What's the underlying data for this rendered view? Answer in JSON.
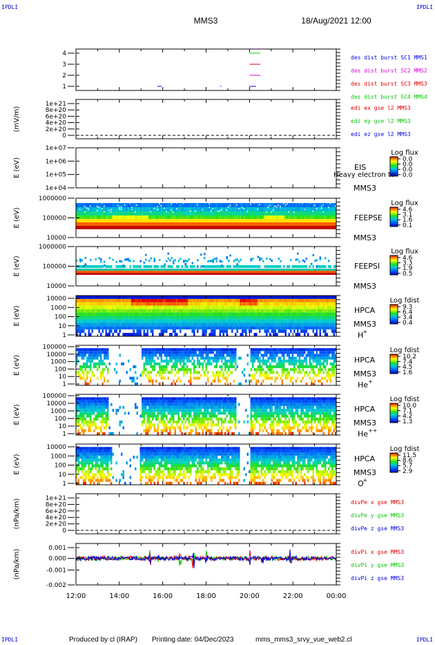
{
  "header": {
    "corner_label": "IPDLI",
    "mission": "MMS3",
    "datetime": "18/Aug/2021 12:00"
  },
  "footer": {
    "producer": "Produced by cl (IRAP)",
    "printing": "Printing date: 04/Dec/2023",
    "file": "mms_mms3_srvy_vue_web2.cl"
  },
  "x_axis": {
    "ticks": [
      "12:00",
      "14:00",
      "16:00",
      "18:00",
      "20:00",
      "22:00",
      "00:00"
    ],
    "range_hours": [
      0,
      12
    ]
  },
  "colors": {
    "frame": "#000000",
    "label_blue": "#0000c8",
    "mms1": "#00c800",
    "mms2": "#e00000",
    "mms3": "#e000e0",
    "mms4": "#0000e0",
    "x_comp": "#e00000",
    "y_comp": "#00c800",
    "z_comp": "#0000e0"
  },
  "panels": [
    {
      "id": "burst",
      "type": "line",
      "ylabel": "",
      "yticks": [
        "1",
        "2",
        "3",
        "4"
      ],
      "legend": [
        {
          "text": "des dist burst SC1 MMS1",
          "color": "#0000e0"
        },
        {
          "text": "des dist burst SC2 MMS2",
          "color": "#e000e0"
        },
        {
          "text": "des dist burst SC3 MMS3",
          "color": "#e00000"
        },
        {
          "text": "des dist burst SC4 MMS4",
          "color": "#00c800"
        }
      ],
      "series": [
        {
          "name": "SC1 MMS1",
          "level": 1,
          "intervals": [
            [
              3.75,
              3.95
            ],
            [
              6.65,
              6.7
            ],
            [
              8.0,
              8.3
            ]
          ]
        },
        {
          "name": "SC2 MMS2",
          "level": 2,
          "intervals": [
            [
              8.0,
              8.5
            ]
          ]
        },
        {
          "name": "SC3 MMS3",
          "level": 3,
          "intervals": [
            [
              8.0,
              8.5
            ]
          ]
        },
        {
          "name": "SC4 MMS4",
          "level": 4,
          "intervals": [
            [
              8.0,
              8.5
            ]
          ]
        }
      ]
    },
    {
      "id": "edi",
      "type": "line",
      "ylabel": "(mV/m)",
      "yticks": [
        "0",
        "2e+20",
        "4e+20",
        "6e+20",
        "8e+20",
        "1e+21"
      ],
      "legend": [
        {
          "text": "edi ex gse l2 MMS3",
          "color": "#e00000"
        },
        {
          "text": "edi ey gse l2 MMS3",
          "color": "#00c800"
        },
        {
          "text": "edi ez gse l2 MMS3",
          "color": "#0000e0"
        }
      ]
    },
    {
      "id": "eis",
      "type": "heatmap",
      "ylabel": "E (eV)",
      "yticks": [
        "1e+04",
        "1e+05",
        "1e+06",
        "1e+07"
      ],
      "label_top": "EIS",
      "label_bottom": "MMS3",
      "overlay": "Heavy electron to",
      "cbar_title": "Log flux",
      "cbar_ticks": [
        "0.0",
        "0.0",
        "0.0",
        "0.0"
      ]
    },
    {
      "id": "feepse",
      "type": "heatmap",
      "ylabel": "E (eV)",
      "yticks": [
        "10000",
        "100000",
        "1000000"
      ],
      "label_top": "FEEPSE",
      "label_bottom": "MMS3",
      "cbar_title": "Log flux",
      "cbar_ticks": [
        "4.6",
        "3.1",
        "1.6",
        "0.1"
      ]
    },
    {
      "id": "feepsi",
      "type": "heatmap",
      "ylabel": "E (eV)",
      "yticks": [
        "10000",
        "100000",
        "1000000"
      ],
      "label_top": "FEEPSI",
      "label_bottom": "MMS3",
      "cbar_title": "Log flux",
      "cbar_ticks": [
        "4.6",
        "3.3",
        "1.9",
        "0.5"
      ]
    },
    {
      "id": "hpca_h",
      "type": "heatmap",
      "ylabel": "E (eV)",
      "yticks": [
        "1",
        "10",
        "100",
        "1000",
        "10000"
      ],
      "label_top": "HPCA",
      "label_mid": "MMS3",
      "species": "H",
      "species_sup": "+",
      "cbar_title": "Log fdist",
      "cbar_ticks": [
        "9.3",
        "6.4",
        "3.4",
        "0.4"
      ]
    },
    {
      "id": "hpca_he",
      "type": "heatmap",
      "ylabel": "E (eV)",
      "yticks": [
        "1",
        "10",
        "100",
        "1000",
        "10000",
        "100000"
      ],
      "label_top": "HPCA",
      "label_mid": "MMS3",
      "species": "He",
      "species_sup": "+",
      "cbar_title": "Log fdist",
      "cbar_ticks": [
        "10.2",
        "7.4",
        "4.5",
        "1.6"
      ]
    },
    {
      "id": "hpca_hepp",
      "type": "heatmap",
      "ylabel": "E (eV)",
      "yticks": [
        "1",
        "10",
        "100",
        "1000",
        "10000",
        "100000"
      ],
      "label_top": "HPCA",
      "label_mid": "MMS3",
      "species": "He",
      "species_sup": "++",
      "cbar_title": "Log fdist",
      "cbar_ticks": [
        "10.0",
        "7.1",
        "4.2",
        "1.3"
      ]
    },
    {
      "id": "hpca_o",
      "type": "heatmap",
      "ylabel": "E (eV)",
      "yticks": [
        "1",
        "10",
        "100",
        "1000",
        "10000"
      ],
      "label_top": "HPCA",
      "label_mid": "MMS3",
      "species": "O",
      "species_sup": "+",
      "cbar_title": "Log fdist",
      "cbar_ticks": [
        "11.5",
        "8.6",
        "5.7",
        "2.9"
      ]
    },
    {
      "id": "divpe",
      "type": "line",
      "ylabel": "(nPa/km)",
      "yticks": [
        "0",
        "2e+20",
        "4e+20",
        "6e+20",
        "8e+20",
        "1e+21"
      ],
      "legend": [
        {
          "text": "divPe x gse MMS3",
          "color": "#e00000"
        },
        {
          "text": "divPe y gse MMS3",
          "color": "#00c800"
        },
        {
          "text": "divPe z gse MMS3",
          "color": "#0000e0"
        }
      ]
    },
    {
      "id": "divpi",
      "type": "line",
      "ylabel": "(nPa/km)",
      "yticks": [
        "-0.002",
        "-0.001",
        "0.000",
        "0.001"
      ],
      "legend": [
        {
          "text": "divPi x gse MMS3",
          "color": "#e00000"
        },
        {
          "text": "divPi y gse MMS3",
          "color": "#00c800"
        },
        {
          "text": "divPi z gse MMS3",
          "color": "#0000e0"
        }
      ]
    }
  ],
  "chart_data": {
    "type": "heatmap",
    "title": "MMS3 18/Aug/2021 12:00",
    "x_ticks": [
      "12:00",
      "14:00",
      "16:00",
      "18:00",
      "20:00",
      "22:00",
      "00:00"
    ],
    "series": [
      {
        "name": "FEEPSE",
        "colorbar": "Log flux",
        "range": [
          0.1,
          4.6
        ]
      },
      {
        "name": "FEEPSI",
        "colorbar": "Log flux",
        "range": [
          0.5,
          4.6
        ]
      },
      {
        "name": "HPCA H+",
        "colorbar": "Log fdist",
        "range": [
          0.4,
          9.3
        ]
      },
      {
        "name": "HPCA He+",
        "colorbar": "Log fdist",
        "range": [
          1.6,
          10.2
        ]
      },
      {
        "name": "HPCA He++",
        "colorbar": "Log fdist",
        "range": [
          1.3,
          10.0
        ]
      },
      {
        "name": "HPCA O+",
        "colorbar": "Log fdist",
        "range": [
          2.9,
          11.5
        ]
      }
    ],
    "divPi_ylim": [
      -0.002,
      0.0015
    ]
  }
}
